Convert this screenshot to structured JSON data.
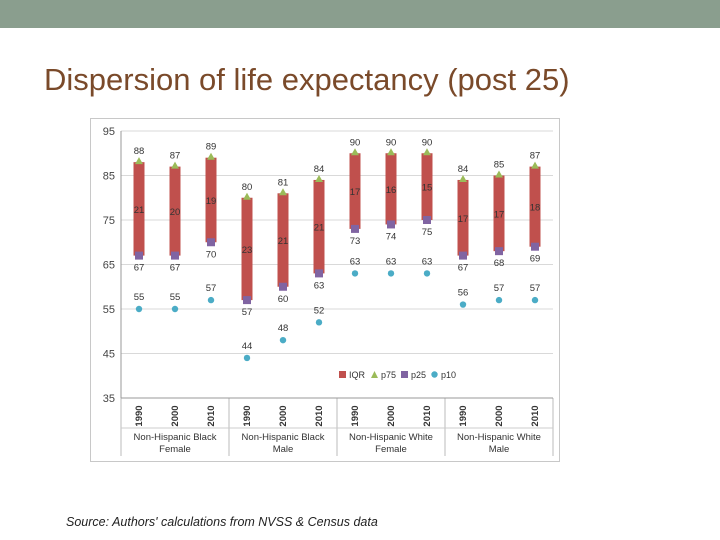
{
  "slide": {
    "title": "Dispersion of life expectancy (post 25)",
    "source": "Source: Authors' calculations from NVSS & Census data"
  },
  "chart_data": {
    "type": "bar",
    "title": "",
    "xlabel": "",
    "ylabel": "",
    "ylim": [
      35,
      95
    ],
    "yticks": [
      35,
      45,
      55,
      65,
      75,
      85,
      95
    ],
    "grid": true,
    "legend_placement": "bottom-right",
    "legend": [
      "IQR",
      "p75",
      "p25",
      "p10"
    ],
    "colors": {
      "IQR": "#c0504d",
      "p75": "#9bbb59",
      "p25": "#8064a2",
      "p10": "#4bacc6"
    },
    "groups": [
      {
        "label": "Non-Hispanic Black Female",
        "line1": "Non-Hispanic Black",
        "line2": "Female",
        "years": [
          "1990",
          "2000",
          "2010"
        ],
        "p75": [
          88,
          87,
          89
        ],
        "p25": [
          67,
          67,
          70
        ],
        "iqr": [
          21,
          20,
          19
        ],
        "p10": [
          55,
          55,
          57
        ]
      },
      {
        "label": "Non-Hispanic Black Male",
        "line1": "Non-Hispanic Black",
        "line2": "Male",
        "years": [
          "1990",
          "2000",
          "2010"
        ],
        "p75": [
          80,
          81,
          84
        ],
        "p25": [
          57,
          60,
          63
        ],
        "iqr": [
          23,
          21,
          21
        ],
        "p10": [
          44,
          48,
          52
        ]
      },
      {
        "label": "Non-Hispanic White Female",
        "line1": "Non-Hispanic White",
        "line2": "Female",
        "years": [
          "1990",
          "2000",
          "2010"
        ],
        "p75": [
          90,
          90,
          90
        ],
        "p25": [
          73,
          74,
          75
        ],
        "iqr": [
          17,
          16,
          15
        ],
        "p10": [
          63,
          63,
          63
        ]
      },
      {
        "label": "Non-Hispanic White Male",
        "line1": "Non-Hispanic White",
        "line2": "Male",
        "years": [
          "1990",
          "2000",
          "2010"
        ],
        "p75": [
          84,
          85,
          87
        ],
        "p25": [
          67,
          68,
          69
        ],
        "iqr": [
          17,
          17,
          18
        ],
        "p10": [
          56,
          57,
          57
        ]
      }
    ]
  }
}
